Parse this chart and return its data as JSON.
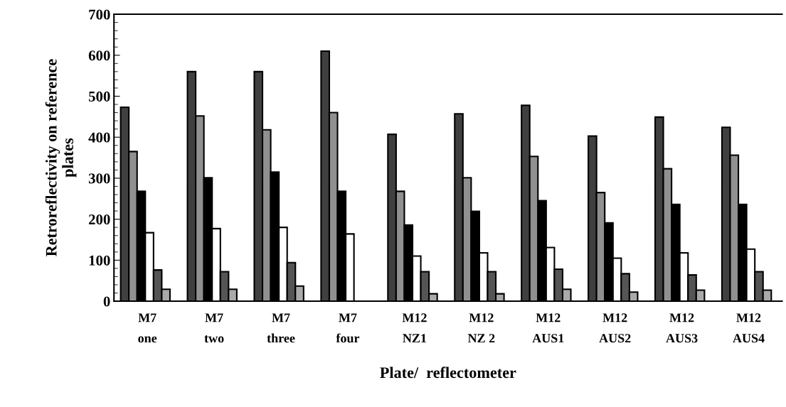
{
  "chart_data": {
    "type": "bar",
    "xlabel": "Plate/  reflectometer",
    "ylabel": "Retroreflectivity on reference\nplates",
    "categories": [
      "M7\none",
      "M7\ntwo",
      "M7\nthree",
      "M7\nfour",
      "M12\nNZ1",
      "M12\nNZ 2",
      "M12\nAUS1",
      "M12\nAUS2",
      "M12\nAUS3",
      "M12\nAUS4"
    ],
    "series": [
      {
        "color": "#404040",
        "values": [
          473,
          560,
          560,
          610,
          407,
          457,
          478,
          403,
          449,
          424
        ]
      },
      {
        "color": "#909090",
        "values": [
          365,
          452,
          418,
          460,
          268,
          301,
          353,
          265,
          323,
          356
        ]
      },
      {
        "color": "#000000",
        "values": [
          268,
          301,
          315,
          268,
          186,
          219,
          245,
          191,
          236,
          236
        ]
      },
      {
        "color": "#ffffff",
        "values": [
          167,
          177,
          180,
          164,
          110,
          118,
          131,
          105,
          118,
          127
        ]
      },
      {
        "color": "#555555",
        "values": [
          76,
          72,
          94,
          null,
          72,
          72,
          78,
          67,
          64,
          72
        ]
      },
      {
        "color": "#aaaaaa",
        "values": [
          29,
          29,
          37,
          null,
          18,
          18,
          29,
          22,
          27,
          27
        ]
      }
    ],
    "ylim": [
      0,
      700
    ],
    "yticks": [
      0,
      100,
      200,
      300,
      400,
      500,
      600,
      700
    ],
    "grid": false,
    "legend": false
  }
}
